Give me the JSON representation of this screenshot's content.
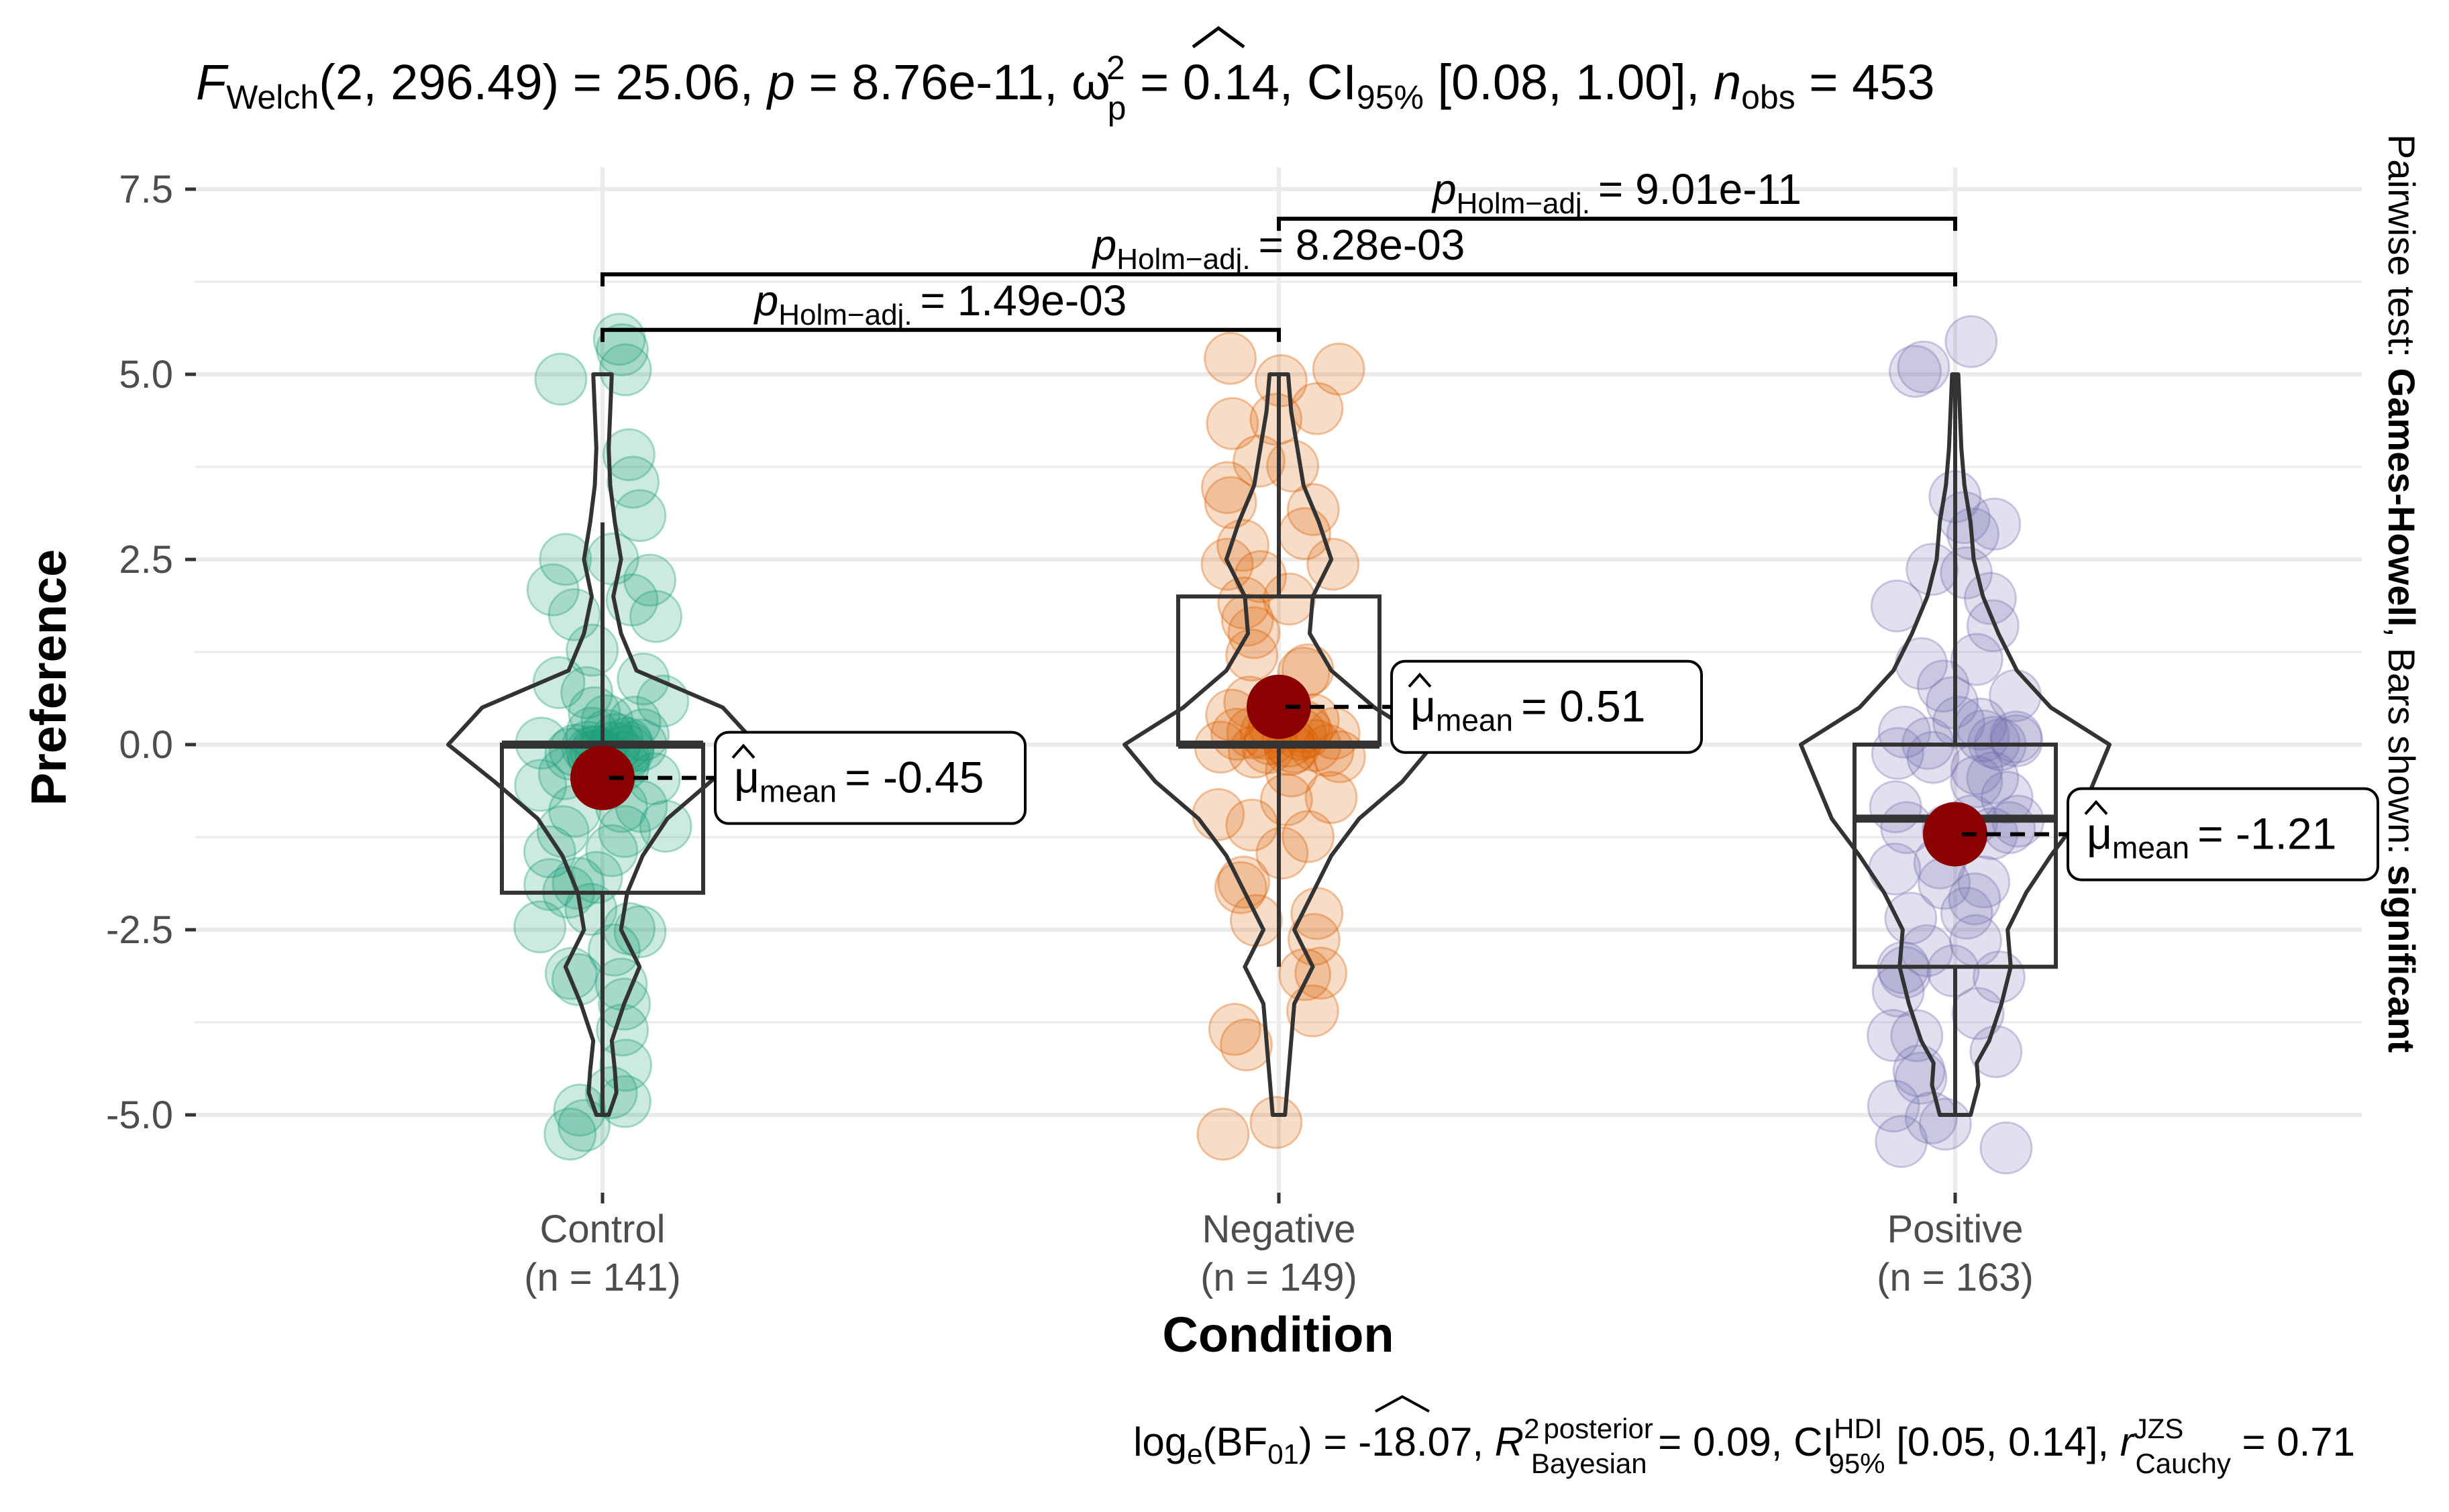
{
  "chart_data": {
    "type": "violin-box-scatter",
    "subtitle": {
      "F": "F",
      "F_sub": "Welch",
      "df": "(2, 296.49)",
      "F_value": " = 25.06, ",
      "p": "p",
      "p_value": " = 8.76e-11, ",
      "omega": "ω",
      "omega_sup": "2",
      "omega_sub": "p",
      "omega_value": " = 0.14, CI",
      "ci_sub": "95%",
      "ci_value": " [0.08, 1.00], ",
      "n": "n",
      "n_sub": "obs",
      "n_value": " = 453"
    },
    "caption": {
      "log": "log",
      "log_sub": "e",
      "bf_open": "(BF",
      "bf_sub": "01",
      "bf_value": ") = -18.07, ",
      "r2": "R",
      "r2_sup": "2",
      "r2_sup2": "posterior",
      "r2_sub": "Bayesian",
      "r2_value": " = 0.09, CI",
      "hdi_sup": "HDI",
      "hdi_sub": "95%",
      "hdi_value": " [0.05, 0.14], ",
      "r": "r",
      "r_sup": "JZS",
      "r_sub": "Cauchy",
      "r_value": " = 0.71"
    },
    "side_label": {
      "part1": "Pairwise test: ",
      "part2": "Games-Howell",
      "part3": ", Bars shown: ",
      "part4": "significant"
    },
    "xlabel": "Condition",
    "ylabel": "Preference",
    "ylim": [
      -6.2,
      8.1
    ],
    "yticks": [
      -5.0,
      -2.5,
      0.0,
      2.5,
      5.0,
      7.5
    ],
    "ytick_labels": [
      "-5.0",
      "-2.5",
      "0.0",
      "2.5",
      "5.0",
      "7.5"
    ],
    "groups": [
      {
        "name": "Control",
        "n_label": "(n = 141)",
        "color": "#1b9e77",
        "mean": -0.45,
        "mean_label": "= -0.45",
        "box": {
          "q1": -2.0,
          "median": 0.0,
          "q3": 0.0,
          "whisker_low": -5.0,
          "whisker_high": 3.0
        },
        "violin": [
          [
            -5,
            0.04
          ],
          [
            -4.7,
            0.09
          ],
          [
            -4.4,
            0.08
          ],
          [
            -4,
            0.06
          ],
          [
            -3.5,
            0.14
          ],
          [
            -3,
            0.24
          ],
          [
            -2.5,
            0.12
          ],
          [
            -2,
            0.16
          ],
          [
            -1.5,
            0.26
          ],
          [
            -1,
            0.42
          ],
          [
            -0.5,
            0.7
          ],
          [
            0,
            1.0
          ],
          [
            0.5,
            0.78
          ],
          [
            1,
            0.22
          ],
          [
            1.5,
            0.12
          ],
          [
            2,
            0.07
          ],
          [
            2.5,
            0.12
          ],
          [
            3,
            0.08
          ],
          [
            3.5,
            0.05
          ],
          [
            4,
            0.04
          ],
          [
            4.5,
            0.05
          ],
          [
            5,
            0.06
          ]
        ],
        "points": [
          5.4,
          5.3,
          5.0,
          4.8,
          3.8,
          3.6,
          3.2,
          2.6,
          2.4,
          2.1,
          2.1,
          2.0,
          1.8,
          1.6,
          1.3,
          1.0,
          0.9,
          0.7,
          0.6,
          0.4,
          0.3,
          0.2,
          0.2,
          0.1,
          0.1,
          0.05,
          0.0,
          0.0,
          0.0,
          0.0,
          0.0,
          0.0,
          0.0,
          0.0,
          0.0,
          0.0,
          0.0,
          0.0,
          -0.1,
          -0.2,
          -0.3,
          -0.4,
          -0.5,
          -0.6,
          -0.8,
          -0.9,
          -1.0,
          -1.1,
          -1.2,
          -1.3,
          -1.5,
          -1.6,
          -1.8,
          -1.9,
          -2.0,
          -2.1,
          -2.2,
          -2.4,
          -2.6,
          -2.7,
          -2.9,
          -3.0,
          -3.1,
          -3.3,
          -3.5,
          -4.0,
          -4.2,
          -4.6,
          -4.8,
          -5.0,
          -5.1,
          -5.2
        ]
      },
      {
        "name": "Negative",
        "n_label": "(n = 149)",
        "color": "#d95f02",
        "mean": 0.51,
        "mean_label": "= 0.51",
        "box": {
          "q1": 0.0,
          "median": 0.0,
          "q3": 2.0,
          "whisker_low": -3.0,
          "whisker_high": 5.0
        },
        "violin": [
          [
            -5,
            0.04
          ],
          [
            -4.5,
            0.06
          ],
          [
            -4,
            0.08
          ],
          [
            -3.5,
            0.1
          ],
          [
            -3,
            0.22
          ],
          [
            -2.5,
            0.1
          ],
          [
            -2,
            0.22
          ],
          [
            -1.5,
            0.34
          ],
          [
            -1,
            0.52
          ],
          [
            -0.5,
            0.8
          ],
          [
            0,
            1.0
          ],
          [
            0.5,
            0.62
          ],
          [
            1,
            0.34
          ],
          [
            1.5,
            0.2
          ],
          [
            2,
            0.22
          ],
          [
            2.5,
            0.34
          ],
          [
            3,
            0.26
          ],
          [
            3.5,
            0.16
          ],
          [
            4,
            0.12
          ],
          [
            4.5,
            0.08
          ],
          [
            5,
            0.06
          ]
        ],
        "points": [
          5.2,
          5.0,
          4.8,
          4.6,
          4.4,
          4.2,
          4.0,
          3.8,
          3.6,
          3.4,
          3.1,
          2.9,
          2.7,
          2.5,
          2.3,
          2.1,
          2.0,
          1.8,
          1.6,
          1.4,
          1.2,
          1.0,
          0.9,
          0.7,
          0.5,
          0.4,
          0.3,
          0.2,
          0.1,
          0.1,
          0.0,
          0.0,
          0.0,
          0.0,
          0.0,
          0.0,
          0.0,
          0.0,
          0.0,
          0.0,
          0.0,
          0.0,
          0.0,
          -0.2,
          -0.4,
          -0.6,
          -0.8,
          -1.0,
          -1.2,
          -1.4,
          -1.6,
          -1.8,
          -2.0,
          -2.2,
          -2.5,
          -2.7,
          -3.0,
          -3.2,
          -3.5,
          -3.7,
          -4.0,
          -5.1,
          -5.2
        ]
      },
      {
        "name": "Positive",
        "n_label": "(n = 163)",
        "color": "#7570b3",
        "mean": -1.21,
        "mean_label": "= -1.21",
        "box": {
          "q1": -3.0,
          "median": -1.0,
          "q3": 0.0,
          "whisker_low": -5.0,
          "whisker_high": 5.0
        },
        "violin": [
          [
            -5,
            0.1
          ],
          [
            -4.6,
            0.15
          ],
          [
            -4.3,
            0.14
          ],
          [
            -4,
            0.22
          ],
          [
            -3.5,
            0.3
          ],
          [
            -3,
            0.36
          ],
          [
            -2.5,
            0.34
          ],
          [
            -2,
            0.46
          ],
          [
            -1.5,
            0.62
          ],
          [
            -1,
            0.8
          ],
          [
            -0.5,
            0.9
          ],
          [
            0,
            1.0
          ],
          [
            0.5,
            0.62
          ],
          [
            1,
            0.4
          ],
          [
            1.5,
            0.28
          ],
          [
            2,
            0.18
          ],
          [
            2.5,
            0.12
          ],
          [
            3,
            0.1
          ],
          [
            3.5,
            0.06
          ],
          [
            4,
            0.04
          ],
          [
            4.5,
            0.03
          ],
          [
            5,
            0.02
          ]
        ],
        "points": [
          5.3,
          5.2,
          5.0,
          3.3,
          3.2,
          3.0,
          2.8,
          2.5,
          2.3,
          2.0,
          1.7,
          1.5,
          1.2,
          1.0,
          0.8,
          0.6,
          0.5,
          0.3,
          0.2,
          0.1,
          0.0,
          0.0,
          0.0,
          0.0,
          0.0,
          0.0,
          0.0,
          0.0,
          -0.2,
          -0.4,
          -0.5,
          -0.7,
          -0.9,
          -1.0,
          -1.0,
          -1.0,
          -1.1,
          -1.2,
          -1.3,
          -1.5,
          -1.7,
          -1.8,
          -2.0,
          -2.0,
          -2.2,
          -2.3,
          -2.5,
          -2.7,
          -2.9,
          -3.0,
          -3.0,
          -3.2,
          -3.4,
          -3.6,
          -3.8,
          -4.0,
          -4.2,
          -4.4,
          -4.6,
          -4.8,
          -5.0,
          -5.1,
          -5.2,
          -5.3
        ]
      }
    ],
    "pairwise": [
      {
        "from": 0,
        "to": 1,
        "y": 5.6,
        "label": "= 1.49e-03",
        "p": "p",
        "p_sub": "Holm−adj."
      },
      {
        "from": 0,
        "to": 2,
        "y": 6.35,
        "label": "= 8.28e-03",
        "p": "p",
        "p_sub": "Holm−adj."
      },
      {
        "from": 1,
        "to": 2,
        "y": 7.1,
        "label": "= 9.01e-11",
        "p": "p",
        "p_sub": "Holm−adj."
      }
    ],
    "mean_symbol": "μ",
    "mean_sub": "mean",
    "mean_point_color": "#8b0000"
  }
}
